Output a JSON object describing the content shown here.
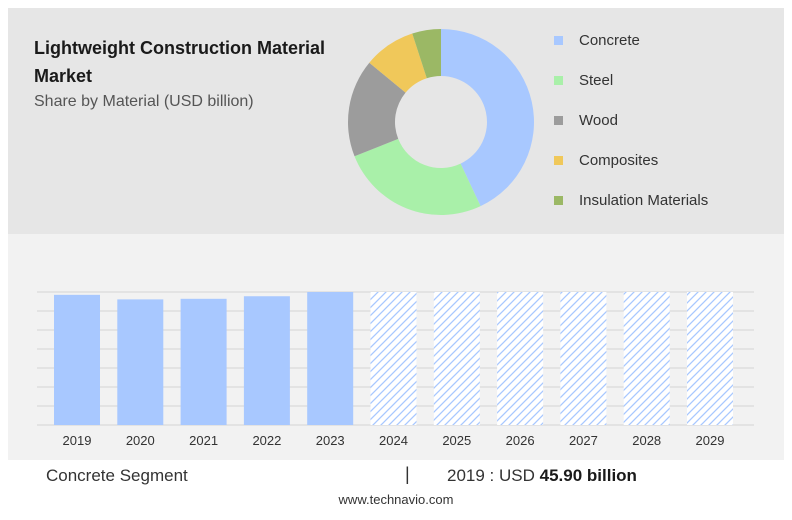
{
  "header": {
    "title": "Lightweight Construction Material Market",
    "subtitle": "Share by Material (USD billion)"
  },
  "colors": {
    "concrete": "#a8c8ff",
    "steel": "#a9f0a9",
    "wood": "#9c9c9c",
    "composites": "#f0c85a",
    "insulation": "#9bb865",
    "hatch": "#a8c8ff"
  },
  "chart_data": [
    {
      "type": "pie",
      "variant": "donut",
      "categories": [
        "Concrete",
        "Steel",
        "Wood",
        "Composites",
        "Insulation Materials"
      ],
      "values": [
        43,
        26,
        17,
        9,
        5
      ],
      "legend_position": "right"
    },
    {
      "type": "bar",
      "categories": [
        "2019",
        "2020",
        "2021",
        "2022",
        "2023",
        "2024",
        "2025",
        "2026",
        "2027",
        "2028",
        "2029"
      ],
      "values": [
        45.9,
        44.3,
        44.5,
        45.4,
        46.9,
        null,
        null,
        null,
        null,
        null,
        null
      ],
      "forecast_categories": [
        "2024",
        "2025",
        "2026",
        "2027",
        "2028",
        "2029"
      ],
      "forecast_pattern": "diagonal-hatch",
      "ylim": [
        0,
        46.9
      ],
      "grid": true
    }
  ],
  "footer": {
    "segment_label": "Concrete Segment",
    "separator": "|",
    "year_label": "2019 : USD",
    "value_label": "45.90 billion",
    "site": "www.technavio.com"
  }
}
